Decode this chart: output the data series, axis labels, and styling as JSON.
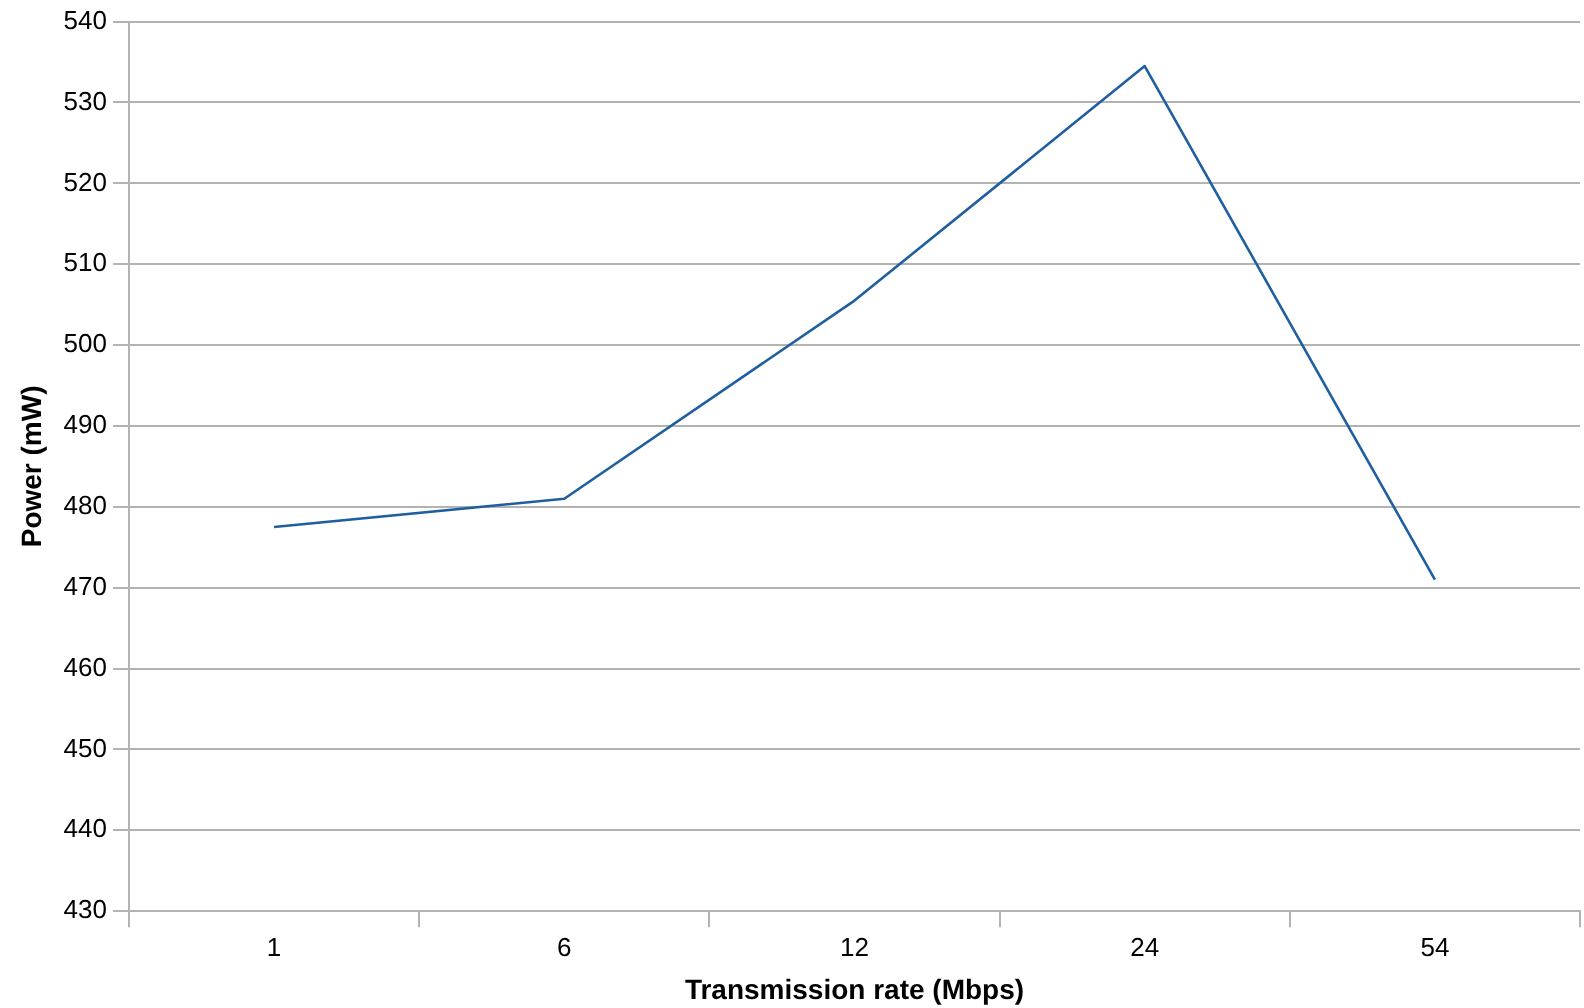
{
  "chart_data": {
    "type": "line",
    "xlabel": "Transmission rate (Mbps)",
    "ylabel": "Power (mW)",
    "categories": [
      "1",
      "6",
      "12",
      "24",
      "54"
    ],
    "series": [
      {
        "color": "#1f5f9f",
        "values": [
          477.5,
          481,
          505.5,
          534.5,
          471
        ]
      }
    ],
    "ylim": [
      430,
      540
    ],
    "yticks": [
      430,
      440,
      450,
      460,
      470,
      480,
      490,
      500,
      510,
      520,
      530,
      540
    ],
    "grid": "y",
    "legend": false,
    "marker": "none"
  }
}
